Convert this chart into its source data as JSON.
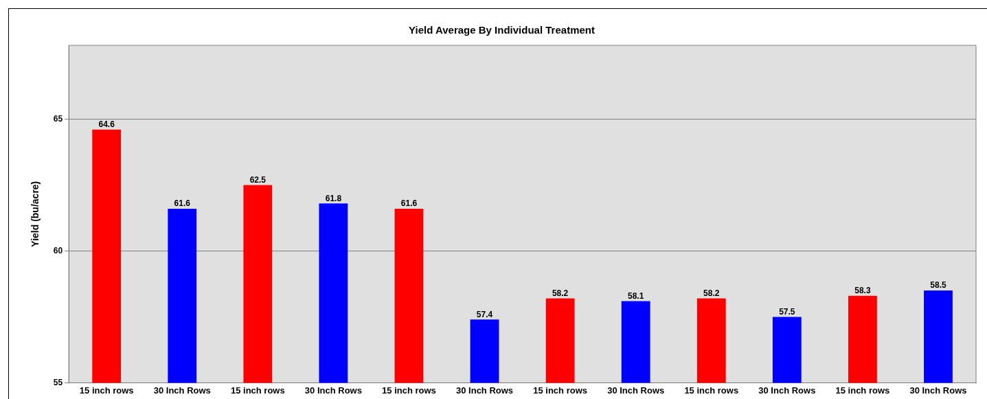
{
  "chart_data": {
    "type": "bar",
    "title": "Yield Average By Individual Treatment",
    "ylabel": "Yield (bu/acre)",
    "categories": [
      "15 inch rows",
      "30 Inch Rows",
      "15 inch rows",
      "30 Inch Rows",
      "15 inch rows",
      "30 Inch Rows",
      "15 inch rows",
      "30 Inch Rows",
      "15 inch rows",
      "30 Inch Rows",
      "15 inch rows",
      "30 Inch Rows"
    ],
    "values": [
      64.6,
      61.6,
      62.5,
      61.8,
      61.6,
      57.4,
      58.2,
      58.1,
      58.2,
      57.5,
      58.3,
      58.5
    ],
    "colors": [
      "#ff0000",
      "#0000ff",
      "#ff0000",
      "#0000ff",
      "#ff0000",
      "#0000ff",
      "#ff0000",
      "#0000ff",
      "#ff0000",
      "#0000ff",
      "#ff0000",
      "#0000ff"
    ],
    "ylim": [
      55,
      67.8
    ],
    "yticks": [
      55,
      60,
      65
    ],
    "grid": "y",
    "data_labels": true,
    "legend": false
  }
}
